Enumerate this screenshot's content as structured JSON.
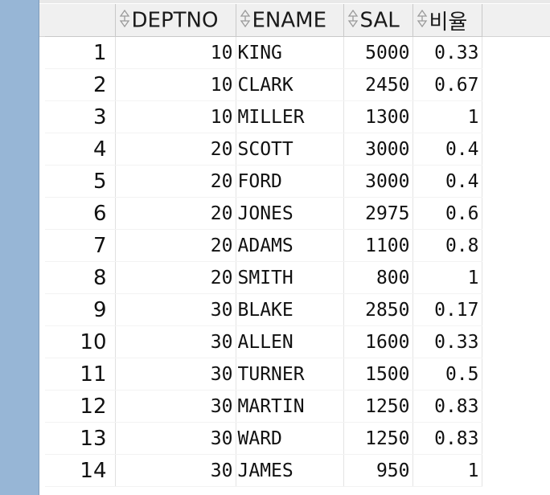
{
  "grid": {
    "columns": [
      "DEPTNO",
      "ENAME",
      "SAL",
      "비율"
    ],
    "rows": [
      {
        "num": "1",
        "deptno": "10",
        "ename": "KING",
        "sal": "5000",
        "ratio": "0.33"
      },
      {
        "num": "2",
        "deptno": "10",
        "ename": "CLARK",
        "sal": "2450",
        "ratio": "0.67"
      },
      {
        "num": "3",
        "deptno": "10",
        "ename": "MILLER",
        "sal": "1300",
        "ratio": "1"
      },
      {
        "num": "4",
        "deptno": "20",
        "ename": "SCOTT",
        "sal": "3000",
        "ratio": "0.4"
      },
      {
        "num": "5",
        "deptno": "20",
        "ename": "FORD",
        "sal": "3000",
        "ratio": "0.4"
      },
      {
        "num": "6",
        "deptno": "20",
        "ename": "JONES",
        "sal": "2975",
        "ratio": "0.6"
      },
      {
        "num": "7",
        "deptno": "20",
        "ename": "ADAMS",
        "sal": "1100",
        "ratio": "0.8"
      },
      {
        "num": "8",
        "deptno": "20",
        "ename": "SMITH",
        "sal": "800",
        "ratio": "1"
      },
      {
        "num": "9",
        "deptno": "30",
        "ename": "BLAKE",
        "sal": "2850",
        "ratio": "0.17"
      },
      {
        "num": "10",
        "deptno": "30",
        "ename": "ALLEN",
        "sal": "1600",
        "ratio": "0.33"
      },
      {
        "num": "11",
        "deptno": "30",
        "ename": "TURNER",
        "sal": "1500",
        "ratio": "0.5"
      },
      {
        "num": "12",
        "deptno": "30",
        "ename": "MARTIN",
        "sal": "1250",
        "ratio": "0.83"
      },
      {
        "num": "13",
        "deptno": "30",
        "ename": "WARD",
        "sal": "1250",
        "ratio": "0.83"
      },
      {
        "num": "14",
        "deptno": "30",
        "ename": "JAMES",
        "sal": "950",
        "ratio": "1"
      }
    ]
  },
  "icons": {
    "sort": "sort-toggle-icon"
  },
  "colors": {
    "side_panel": "#97b6d6",
    "header_bg": "#f0f0f0"
  }
}
